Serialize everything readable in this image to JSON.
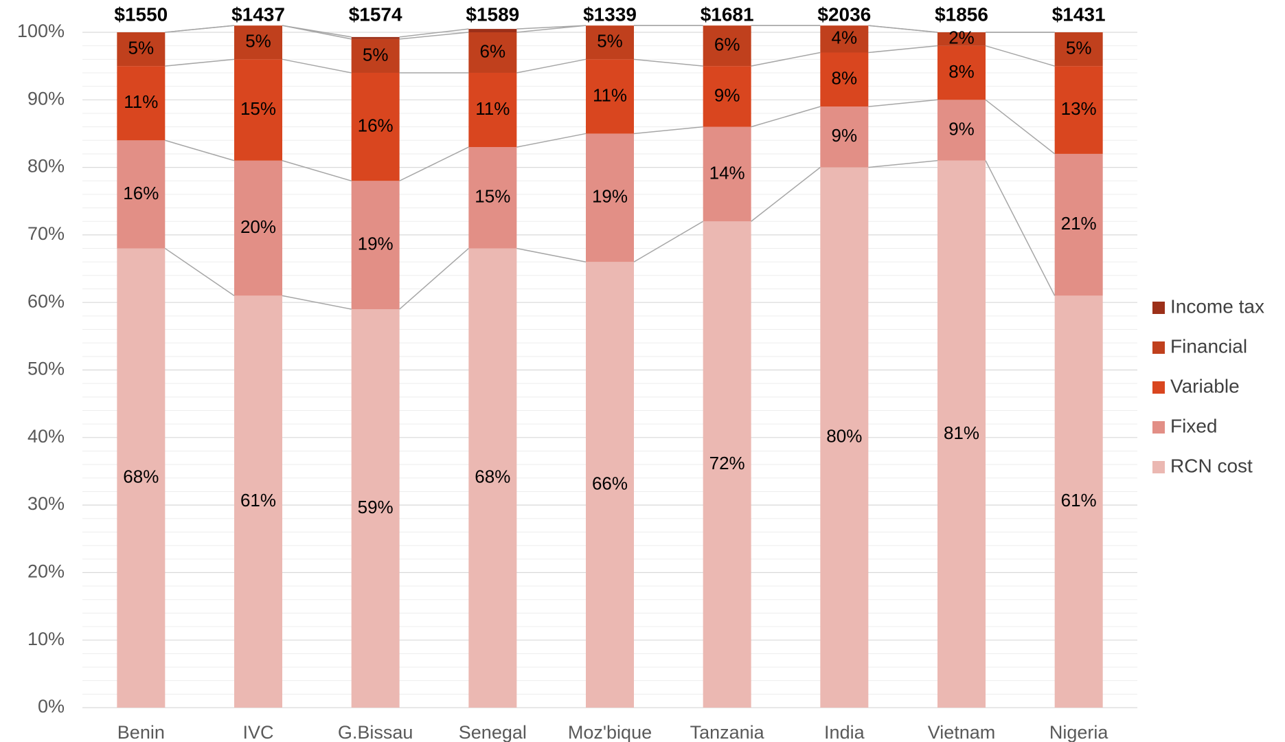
{
  "chart_data": {
    "type": "stacked_bar",
    "categories": [
      "Benin",
      "IVC",
      "G.Bissau",
      "Senegal",
      "Moz'bique",
      "Tanzania",
      "India",
      "Vietnam",
      "Nigeria"
    ],
    "series": [
      {
        "name": "RCN cost",
        "color": "#ebb8b2",
        "values": [
          68,
          61,
          59,
          68,
          66,
          72,
          80,
          81,
          61
        ],
        "value_labels": [
          "68%",
          "61%",
          "59%",
          "68%",
          "66%",
          "72%",
          "80%",
          "81%",
          "61%"
        ]
      },
      {
        "name": "Fixed",
        "color": "#e28f86",
        "values": [
          16,
          20,
          19,
          15,
          19,
          14,
          9,
          9,
          21
        ],
        "value_labels": [
          "16%",
          "20%",
          "19%",
          "15%",
          "19%",
          "14%",
          "9%",
          "9%",
          "21%"
        ]
      },
      {
        "name": "Variable",
        "color": "#d9461f",
        "values": [
          11,
          15,
          16,
          11,
          11,
          9,
          8,
          8,
          13
        ],
        "value_labels": [
          "11%",
          "15%",
          "16%",
          "11%",
          "11%",
          "9%",
          "8%",
          "8%",
          "13%"
        ]
      },
      {
        "name": "Financial",
        "color": "#c0401d",
        "values": [
          5,
          5,
          5,
          6,
          5,
          6,
          4,
          2,
          5
        ],
        "value_labels": [
          "5%",
          "5%",
          "5%",
          "6%",
          "5%",
          "6%",
          "4%",
          "2%",
          "5%"
        ]
      },
      {
        "name": "Income tax",
        "color": "#9c3019",
        "values": [
          0,
          0,
          0.3,
          0.5,
          0,
          0,
          0,
          0,
          0
        ]
      }
    ],
    "totals": {
      "values": [
        1550,
        1437,
        1574,
        1589,
        1339,
        1681,
        2036,
        1856,
        1431
      ],
      "value_labels": [
        "$1550",
        "$1437",
        "$1574",
        "$1589",
        "$1339",
        "$1681",
        "$2036",
        "$1856",
        "$1431"
      ]
    },
    "ylim": [
      0,
      100
    ],
    "yticks": [
      {
        "value": 0,
        "label": "0%"
      },
      {
        "value": 10,
        "label": "10%"
      },
      {
        "value": 20,
        "label": "20%"
      },
      {
        "value": 30,
        "label": "30%"
      },
      {
        "value": 40,
        "label": "40%"
      },
      {
        "value": 50,
        "label": "50%"
      },
      {
        "value": 60,
        "label": "60%"
      },
      {
        "value": 70,
        "label": "70%"
      },
      {
        "value": 80,
        "label": "80%"
      },
      {
        "value": 90,
        "label": "90%"
      },
      {
        "value": 100,
        "label": "100%"
      }
    ],
    "yminorticks": [
      2,
      4,
      6,
      8,
      12,
      14,
      16,
      18,
      22,
      24,
      26,
      28,
      32,
      34,
      36,
      38,
      42,
      44,
      46,
      48,
      52,
      54,
      56,
      58,
      62,
      64,
      66,
      68,
      72,
      74,
      76,
      78,
      82,
      84,
      86,
      88,
      92,
      94,
      96,
      98
    ],
    "grid": true,
    "legend": "right"
  }
}
